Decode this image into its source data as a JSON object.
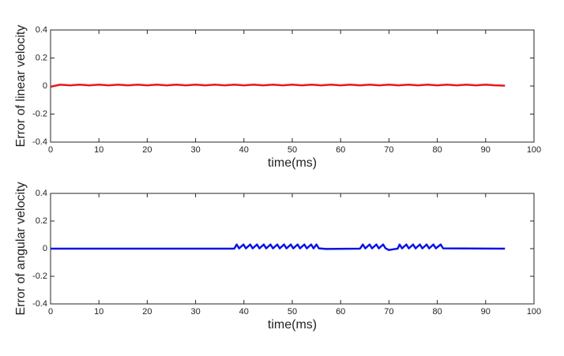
{
  "chart_data": [
    {
      "type": "line",
      "ylabel": "Error of linear velocity",
      "xlabel": "time(ms)",
      "x": [
        0,
        2,
        4,
        6,
        8,
        10,
        12,
        14,
        16,
        18,
        20,
        22,
        24,
        26,
        28,
        30,
        32,
        34,
        36,
        38,
        40,
        42,
        44,
        46,
        48,
        50,
        52,
        54,
        56,
        58,
        60,
        62,
        64,
        66,
        68,
        70,
        72,
        74,
        76,
        78,
        80,
        82,
        84,
        86,
        88,
        90,
        92,
        94
      ],
      "series": [
        {
          "color": "#e41a1c",
          "values": [
            -0.005,
            0.01,
            0.005,
            0.01,
            0.005,
            0.01,
            0.005,
            0.01,
            0.005,
            0.01,
            0.005,
            0.01,
            0.005,
            0.01,
            0.005,
            0.01,
            0.005,
            0.01,
            0.005,
            0.01,
            0.005,
            0.01,
            0.005,
            0.01,
            0.005,
            0.01,
            0.005,
            0.01,
            0.005,
            0.01,
            0.005,
            0.01,
            0.005,
            0.01,
            0.005,
            0.01,
            0.005,
            0.01,
            0.005,
            0.01,
            0.005,
            0.01,
            0.005,
            0.01,
            0.005,
            0.01,
            0.005,
            0.003
          ]
        }
      ],
      "xlim": [
        0,
        100
      ],
      "xticks": [
        0,
        10,
        20,
        30,
        40,
        50,
        60,
        70,
        80,
        90,
        100
      ],
      "ylim": [
        -0.4,
        0.4
      ],
      "yticks": [
        -0.4,
        -0.2,
        0,
        0.2,
        0.4
      ]
    },
    {
      "type": "line",
      "ylabel": "Error of angular velocity",
      "xlabel": "time(ms)",
      "x": [
        0,
        38,
        38.5,
        39,
        39.9,
        40.4,
        41.3,
        41.8,
        42.7,
        43.2,
        44.1,
        44.6,
        45.5,
        46,
        46.9,
        47.4,
        48.3,
        48.8,
        49.7,
        50.2,
        51.1,
        51.6,
        52.5,
        53,
        53.9,
        54.4,
        55,
        55.5,
        57,
        64,
        64.6,
        65.1,
        66,
        66.5,
        67.4,
        67.9,
        68.8,
        69.3,
        70,
        71,
        71.8,
        72.2,
        72.7,
        73.6,
        74.1,
        75,
        75.5,
        76.4,
        76.9,
        77.8,
        78.3,
        79.2,
        79.7,
        80.7,
        81.2,
        94
      ],
      "series": [
        {
          "color": "#0a14e6",
          "values": [
            0,
            0,
            0.03,
            0.002,
            0.03,
            0.002,
            0.03,
            0.002,
            0.03,
            0.002,
            0.03,
            0.002,
            0.03,
            0.002,
            0.03,
            0.002,
            0.03,
            0.002,
            0.03,
            0.002,
            0.03,
            0.002,
            0.03,
            0.002,
            0.03,
            0.002,
            0.03,
            0.002,
            -0.002,
            0,
            0.03,
            0.002,
            0.03,
            0.002,
            0.03,
            0.002,
            0.03,
            0.002,
            -0.01,
            -0.004,
            0,
            0.03,
            0.002,
            0.03,
            0.002,
            0.03,
            0.002,
            0.03,
            0.002,
            0.03,
            0.002,
            0.03,
            0.002,
            0.03,
            0.002,
            0
          ]
        }
      ],
      "xlim": [
        0,
        100
      ],
      "xticks": [
        0,
        10,
        20,
        30,
        40,
        50,
        60,
        70,
        80,
        90,
        100
      ],
      "ylim": [
        -0.4,
        0.4
      ],
      "yticks": [
        -0.4,
        -0.2,
        0,
        0.2,
        0.4
      ]
    }
  ]
}
